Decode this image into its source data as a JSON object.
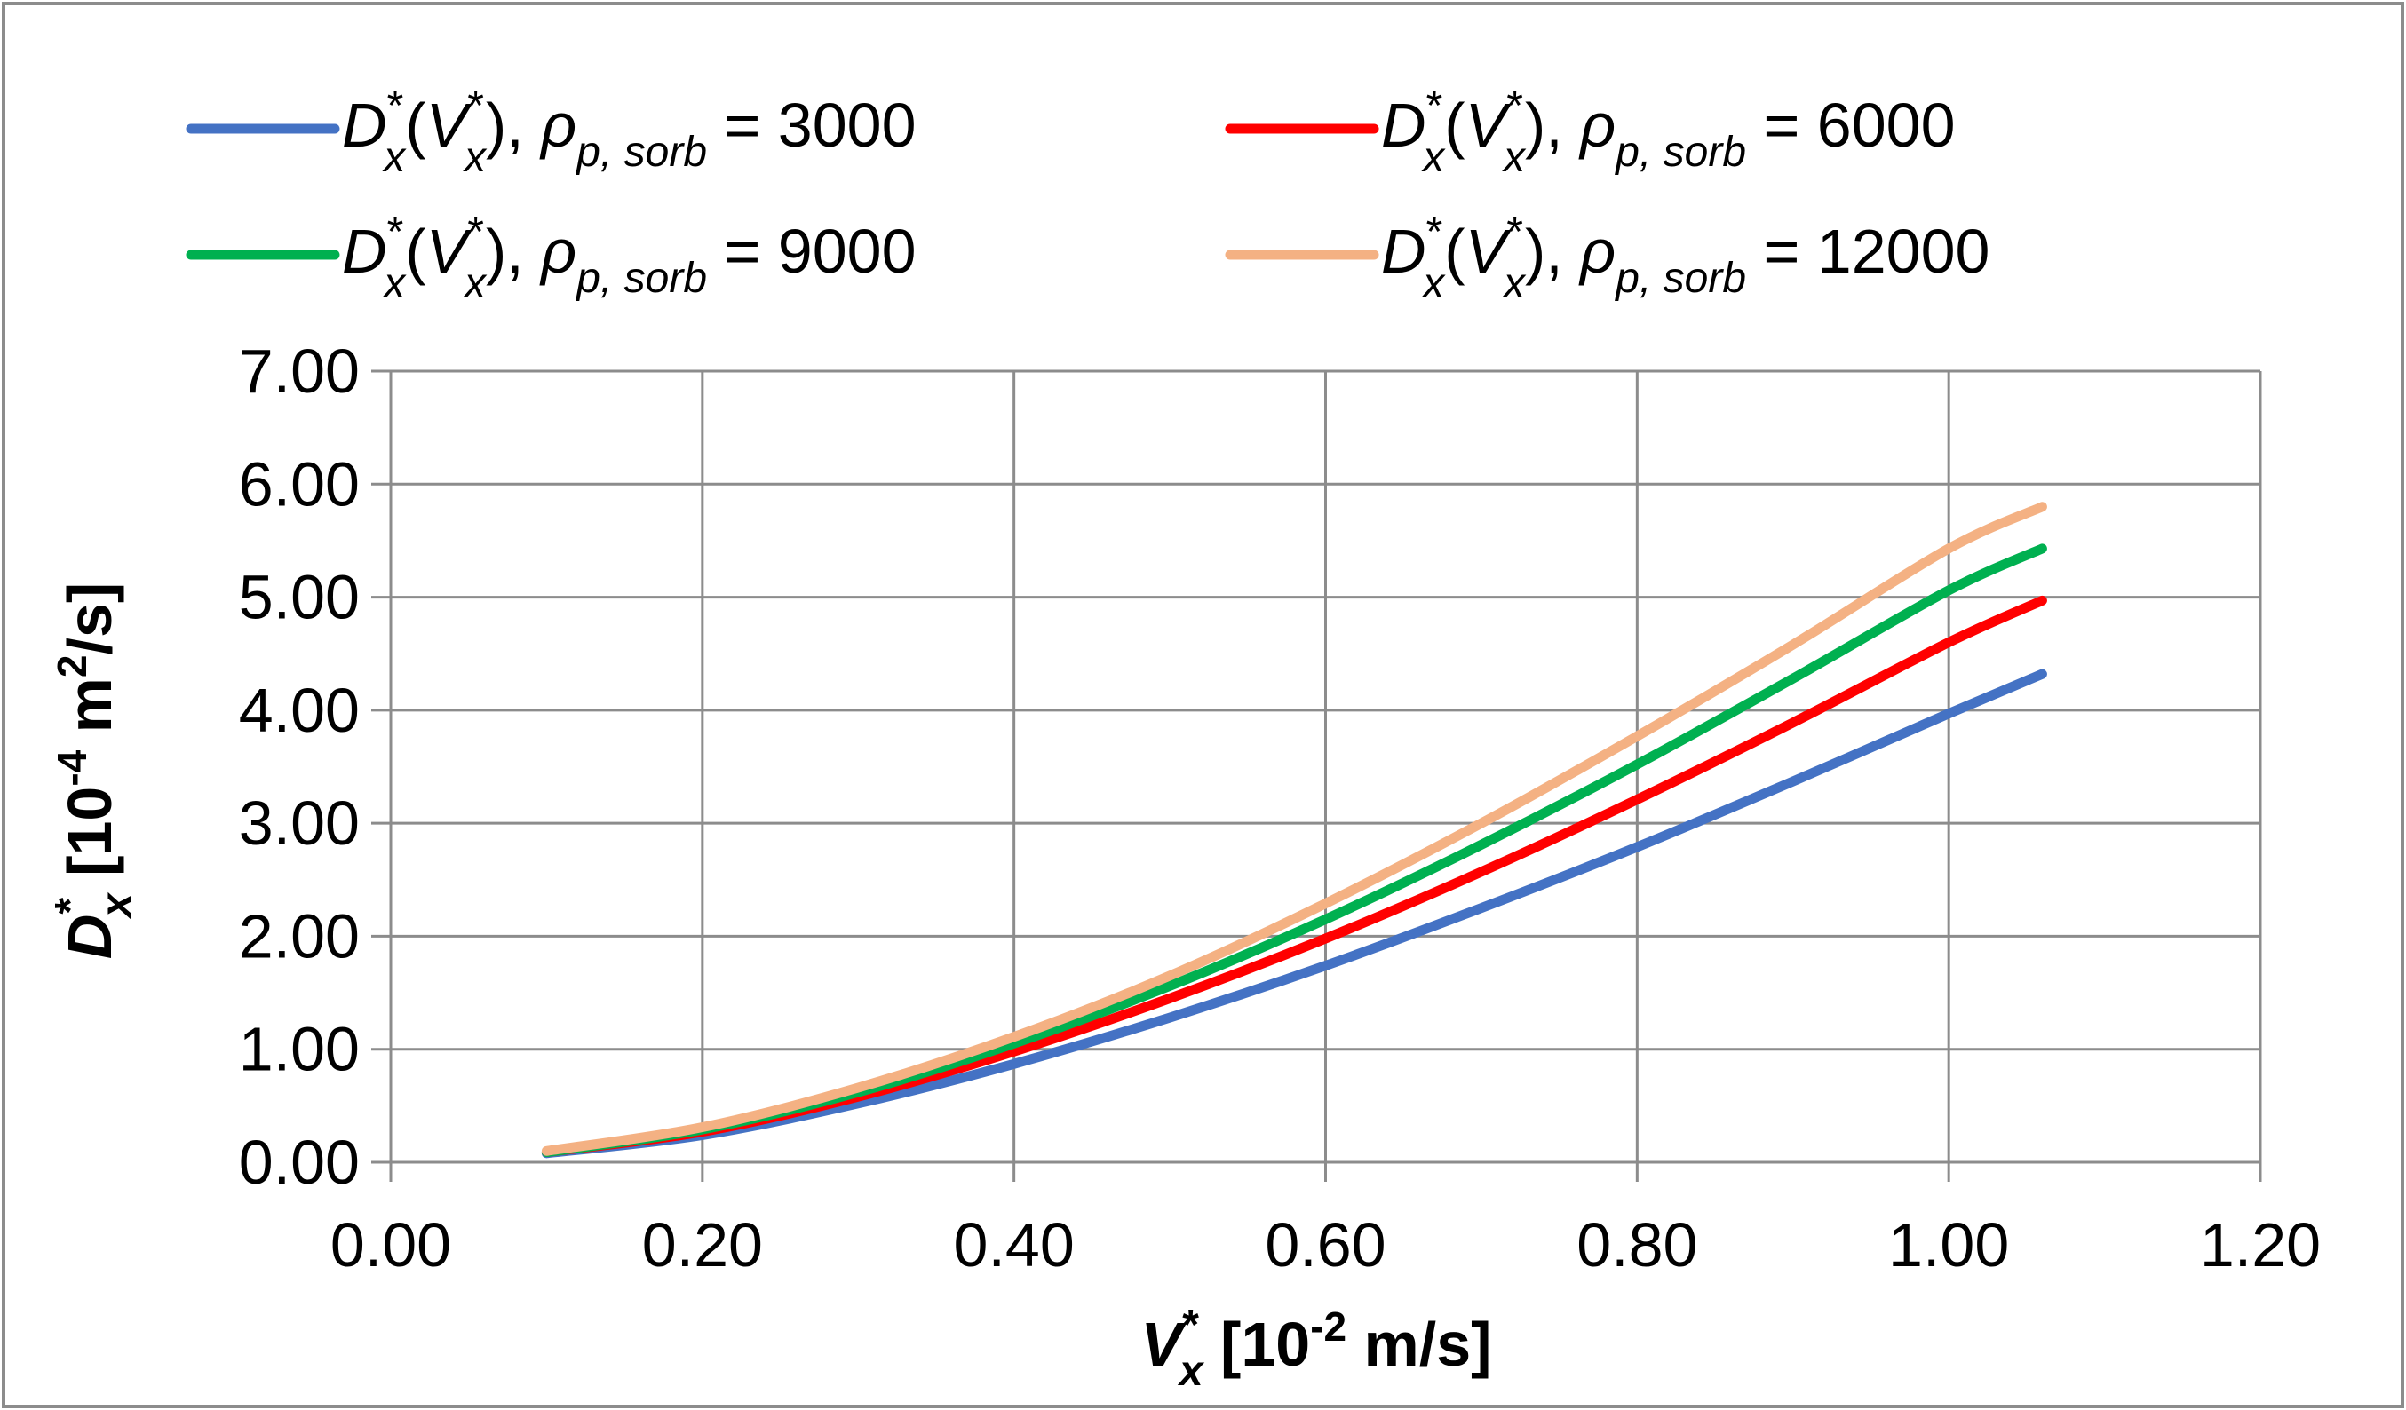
{
  "chart_data": {
    "type": "line",
    "title": "",
    "xlabel": {
      "main": "V",
      "sub": "x",
      "sup": "*",
      "rest": " [10",
      "exp": "-2",
      "unit": " m/s]"
    },
    "ylabel": {
      "main": "D",
      "sub": "x",
      "sup": "*",
      "rest": " [10",
      "exp": "-4",
      "unit": " m",
      "unit_exp": "2",
      "unit_tail": "/s]"
    },
    "xlim": [
      0,
      1.2
    ],
    "ylim": [
      0,
      7
    ],
    "xticks": [
      "0.00",
      "0.20",
      "0.40",
      "0.60",
      "0.80",
      "1.00",
      "1.20"
    ],
    "yticks": [
      "0.00",
      "1.00",
      "2.00",
      "3.00",
      "4.00",
      "5.00",
      "6.00",
      "7.00"
    ],
    "grid": true,
    "legend_position": "top",
    "legend_template": {
      "d": "D",
      "d_sub": "x",
      "star": "*",
      "v": "V",
      "v_sub": "x",
      "rho": "ρ",
      "rho_sub": "p, sorb",
      "eq": " = "
    },
    "x": [
      0.1,
      0.2,
      0.3,
      0.4,
      0.5,
      0.6,
      0.7,
      0.8,
      0.9,
      1.0,
      1.06
    ],
    "series": [
      {
        "name": "3000",
        "color": "#4472C4",
        "values": [
          0.08,
          0.24,
          0.52,
          0.87,
          1.28,
          1.74,
          2.25,
          2.79,
          3.37,
          3.97,
          4.32
        ]
      },
      {
        "name": "6000",
        "color": "#FF0000",
        "values": [
          0.09,
          0.27,
          0.58,
          0.98,
          1.45,
          1.98,
          2.57,
          3.21,
          3.89,
          4.6,
          4.97
        ]
      },
      {
        "name": "9000",
        "color": "#00B050",
        "values": [
          0.09,
          0.29,
          0.62,
          1.05,
          1.56,
          2.15,
          2.81,
          3.52,
          4.28,
          5.06,
          5.43
        ]
      },
      {
        "name": "12000",
        "color": "#F4B183",
        "values": [
          0.1,
          0.31,
          0.66,
          1.11,
          1.65,
          2.29,
          3.0,
          3.77,
          4.58,
          5.43,
          5.8
        ]
      }
    ]
  }
}
